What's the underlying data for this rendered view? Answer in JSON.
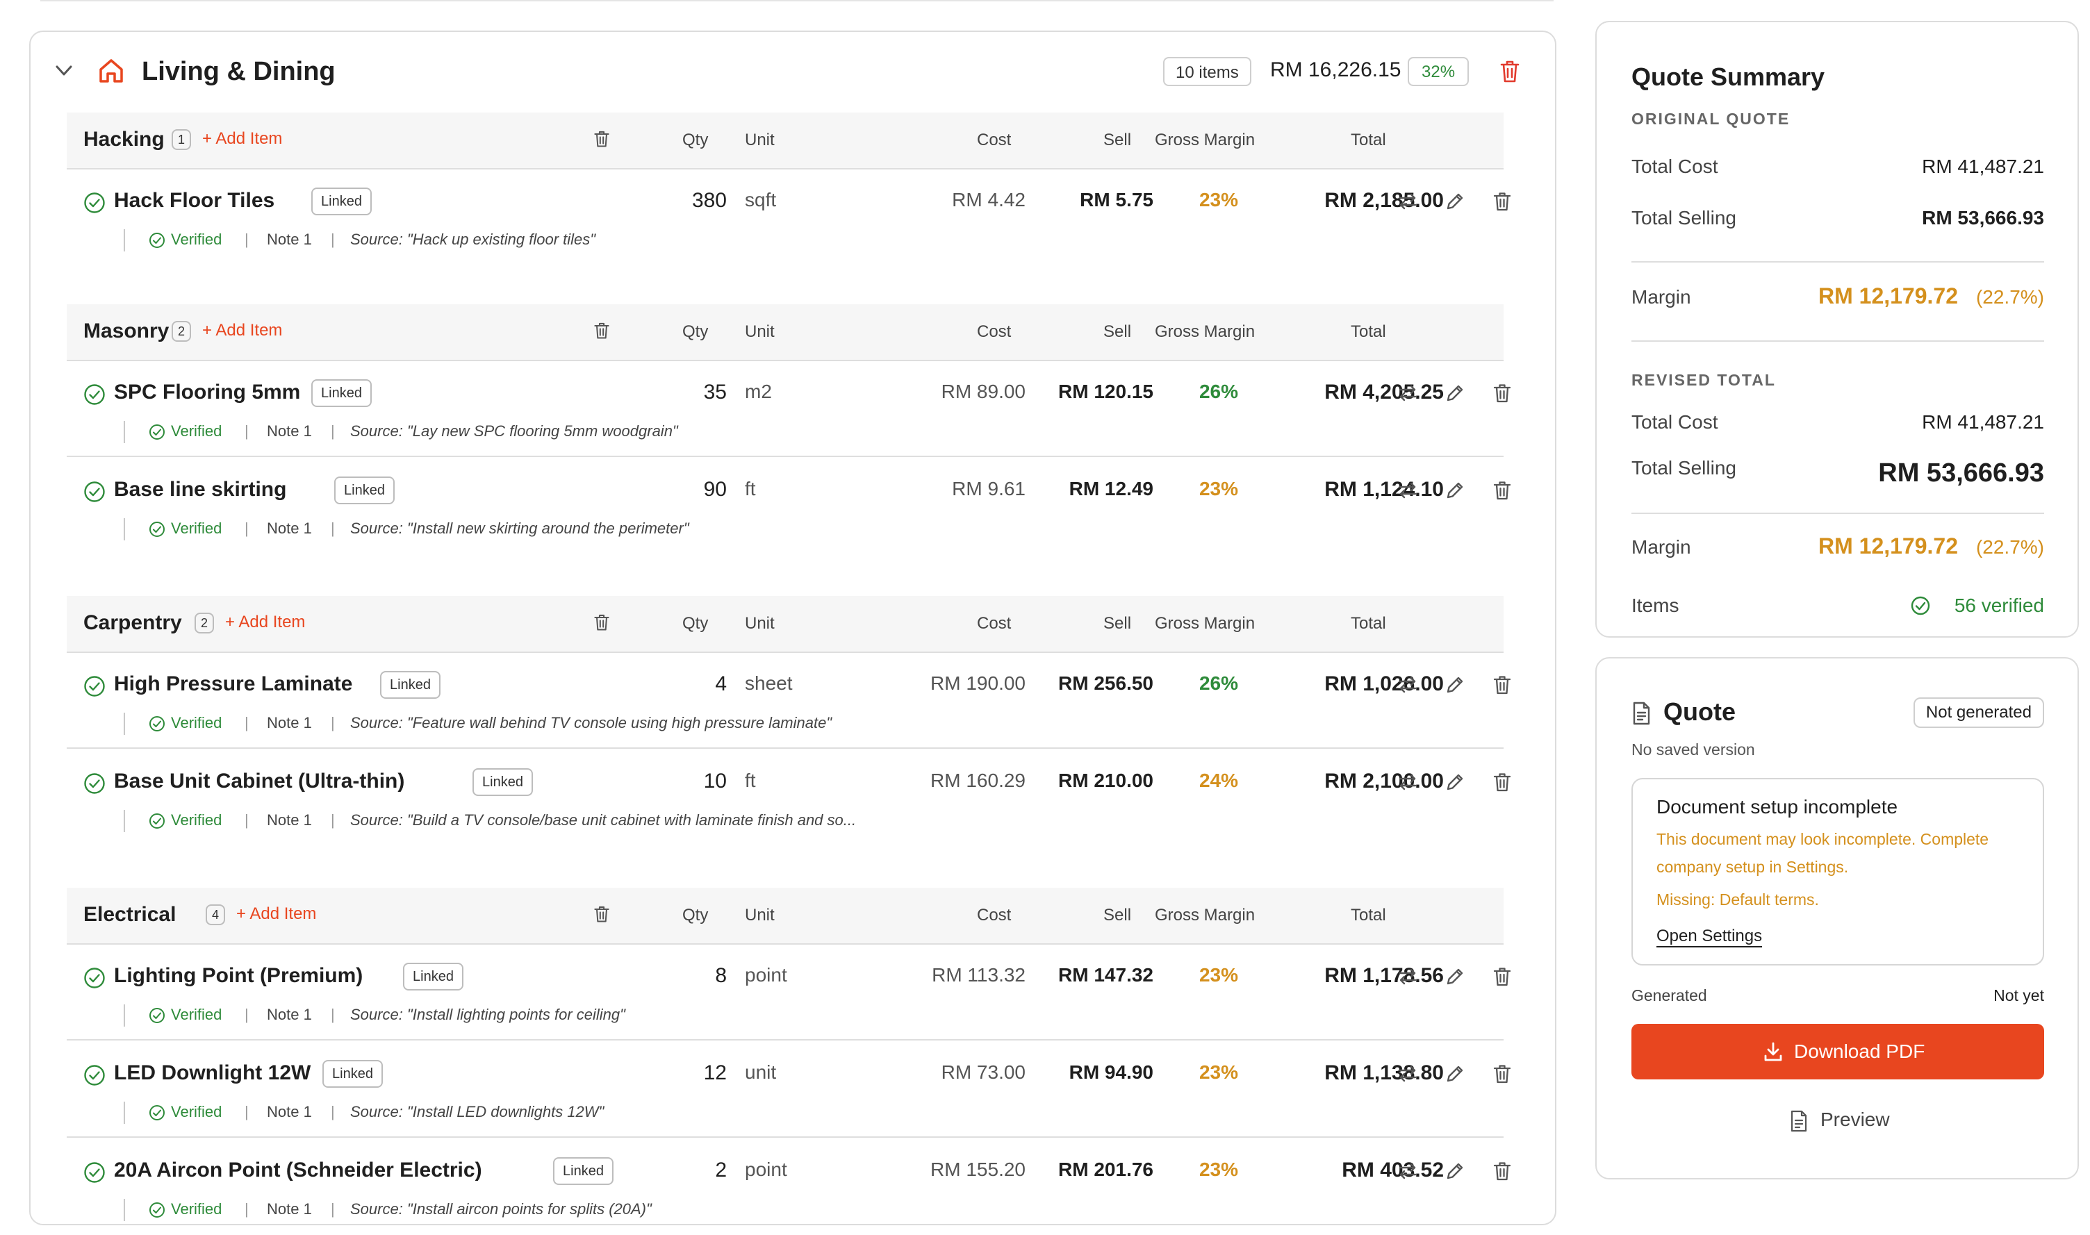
{
  "section": {
    "title": "Living & Dining",
    "items_badge": "10 items",
    "total": "RM 16,226.15",
    "margin_badge": "32%"
  },
  "columns": {
    "qty": "Qty",
    "unit": "Unit",
    "cost": "Cost",
    "sell": "Sell",
    "gross_margin": "Gross Margin",
    "total": "Total"
  },
  "add_item_label": "+ Add Item",
  "linked_label": "Linked",
  "verified_label": "Verified",
  "note_label": "Note 1",
  "categories": [
    {
      "name": "Hacking",
      "count": "1",
      "items": [
        {
          "name": "Hack Floor Tiles",
          "qty": "380",
          "unit": "sqft",
          "cost": "RM 4.42",
          "sell": "RM 5.75",
          "gm": "23%",
          "total": "RM 2,185.00",
          "source": "Source: \"Hack up existing floor tiles\""
        }
      ]
    },
    {
      "name": "Masonry",
      "count": "2",
      "items": [
        {
          "name": "SPC Flooring 5mm",
          "qty": "35",
          "unit": "m2",
          "cost": "RM 89.00",
          "sell": "RM 120.15",
          "gm": "26%",
          "total": "RM 4,205.25",
          "source": "Source: \"Lay new SPC flooring 5mm woodgrain\""
        },
        {
          "name": "Base line skirting",
          "qty": "90",
          "unit": "ft",
          "cost": "RM 9.61",
          "sell": "RM 12.49",
          "gm": "23%",
          "total": "RM 1,124.10",
          "source": "Source: \"Install new skirting around the perimeter\""
        }
      ]
    },
    {
      "name": "Carpentry",
      "count": "2",
      "items": [
        {
          "name": "High Pressure Laminate",
          "qty": "4",
          "unit": "sheet",
          "cost": "RM 190.00",
          "sell": "RM 256.50",
          "gm": "26%",
          "total": "RM 1,026.00",
          "source": "Source: \"Feature wall behind TV console using high pressure laminate\""
        },
        {
          "name": "Base Unit Cabinet (Ultra-thin)",
          "qty": "10",
          "unit": "ft",
          "cost": "RM 160.29",
          "sell": "RM 210.00",
          "gm": "24%",
          "total": "RM 2,100.00",
          "source": "Source: \"Build a TV console/base unit cabinet with laminate finish and so..."
        }
      ]
    },
    {
      "name": "Electrical",
      "count": "4",
      "items": [
        {
          "name": "Lighting Point (Premium)",
          "qty": "8",
          "unit": "point",
          "cost": "RM 113.32",
          "sell": "RM 147.32",
          "gm": "23%",
          "total": "RM 1,178.56",
          "source": "Source: \"Install lighting points for ceiling\""
        },
        {
          "name": "LED Downlight 12W",
          "qty": "12",
          "unit": "unit",
          "cost": "RM 73.00",
          "sell": "RM 94.90",
          "gm": "23%",
          "total": "RM 1,138.80",
          "source": "Source: \"Install LED downlights 12W\""
        },
        {
          "name": "20A Aircon Point (Schneider Electric)",
          "qty": "2",
          "unit": "point",
          "cost": "RM 155.20",
          "sell": "RM 201.76",
          "gm": "23%",
          "total": "RM 403.52",
          "source": "Source: \"Install aircon points for splits (20A)\""
        }
      ]
    }
  ],
  "summary": {
    "title": "Quote Summary",
    "original_heading": "ORIGINAL QUOTE",
    "total_cost_label": "Total Cost",
    "total_cost": "RM 41,487.21",
    "total_selling_label": "Total Selling",
    "total_selling": "RM 53,666.93",
    "margin_label": "Margin",
    "margin_amount": "RM 12,179.72",
    "margin_pct": "(22.7%)",
    "revised_heading": "REVISED TOTAL",
    "revised_total_cost": "RM 41,487.21",
    "revised_total_selling": "RM 53,666.93",
    "revised_margin_amount": "RM 12,179.72",
    "revised_margin_pct": "(22.7%)",
    "items_label": "Items",
    "items_verified": "56 verified"
  },
  "quote": {
    "title": "Quote",
    "status": "Not generated",
    "subtitle": "No saved version",
    "setup_title": "Document setup incomplete",
    "setup_message": "This document may look incomplete. Complete company setup in Settings.",
    "setup_missing": "Missing: Default terms.",
    "setup_link": "Open Settings",
    "generated_label": "Generated",
    "generated_value": "Not yet",
    "download_label": "Download PDF",
    "preview_label": "Preview"
  },
  "colors": {
    "accent": "#e8461f",
    "margin_amber": "#d4901d",
    "success_green": "#2e8b3a"
  }
}
